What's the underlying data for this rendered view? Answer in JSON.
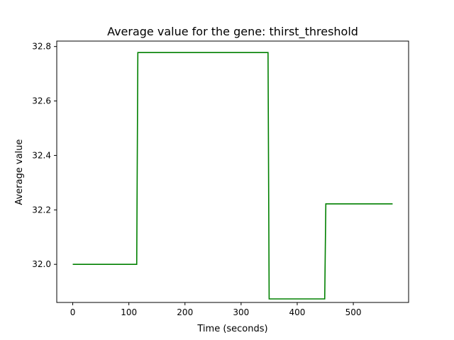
{
  "chart_data": {
    "type": "line",
    "title": "Average value for the gene: thirst_threshold",
    "xlabel": "Time (seconds)",
    "ylabel": "Average value",
    "xlim": [
      -28.5,
      598.5
    ],
    "ylim": [
      31.86,
      32.82
    ],
    "xticks": [
      0,
      100,
      200,
      300,
      400,
      500
    ],
    "yticks": [
      32.0,
      32.2,
      32.4,
      32.6,
      32.8
    ],
    "ytick_labels": [
      "32.0",
      "32.2",
      "32.4",
      "32.6",
      "32.8"
    ],
    "grid": false,
    "legend": "none",
    "series": [
      {
        "color": "#008000",
        "step": true,
        "points": [
          {
            "x": 0,
            "y": 32.0
          },
          {
            "x": 114,
            "y": 32.0
          },
          {
            "x": 116,
            "y": 32.778
          },
          {
            "x": 348,
            "y": 32.778
          },
          {
            "x": 350,
            "y": 31.873
          },
          {
            "x": 449,
            "y": 31.873
          },
          {
            "x": 451,
            "y": 32.222
          },
          {
            "x": 570,
            "y": 32.222
          }
        ]
      }
    ]
  }
}
